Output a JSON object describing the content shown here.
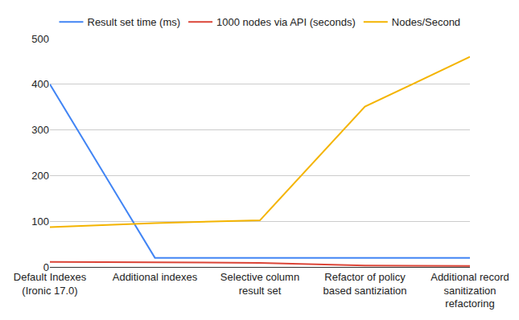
{
  "chart_data": {
    "type": "line",
    "categories": [
      "Default Indexes (Ironic 17.0)",
      "Additional indexes",
      "Selective column result set",
      "Refactor of policy based santiziation",
      "Additional record sanitization refactoring"
    ],
    "series": [
      {
        "name": "Result set time (ms)",
        "color": "#4285f4",
        "values": [
          400,
          20,
          20,
          20,
          20
        ]
      },
      {
        "name": "1000 nodes via API (seconds)",
        "color": "#db4437",
        "values": [
          11,
          10,
          9,
          3,
          2
        ]
      },
      {
        "name": "Nodes/Second",
        "color": "#f4b400",
        "values": [
          87,
          96,
          102,
          351,
          460
        ]
      }
    ],
    "ylim": [
      0,
      500
    ],
    "yticks": [
      0,
      100,
      200,
      300,
      400,
      500
    ],
    "grid": true,
    "legend": "top"
  }
}
